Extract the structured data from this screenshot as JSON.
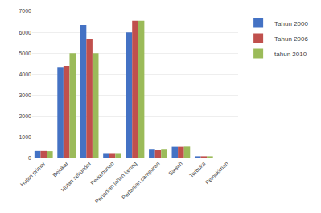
{
  "chart_data": {
    "type": "bar",
    "categories": [
      "Hutan primer",
      "Belukar",
      "Hutan sekunder",
      "Perkebunan",
      "Pertanian lahan kering",
      "Pertanian campuran",
      "Sawah",
      "Terbuka",
      "Pemukiman"
    ],
    "series": [
      {
        "name": "Tahun 2000",
        "color": "#4472C4",
        "values": [
          350,
          4350,
          6350,
          250,
          6000,
          450,
          550,
          100,
          0
        ]
      },
      {
        "name": "Tahun 2006",
        "color": "#C0504D",
        "values": [
          350,
          4400,
          5700,
          250,
          6550,
          420,
          550,
          100,
          0
        ]
      },
      {
        "name": "tahun 2010",
        "color": "#9BBB59",
        "values": [
          340,
          5000,
          5000,
          250,
          6550,
          450,
          560,
          100,
          0
        ]
      }
    ],
    "ylim": [
      0,
      7000
    ],
    "yticks": [
      0,
      1000,
      2000,
      3000,
      4000,
      5000,
      6000,
      7000
    ],
    "grid": true,
    "legend": "right"
  }
}
